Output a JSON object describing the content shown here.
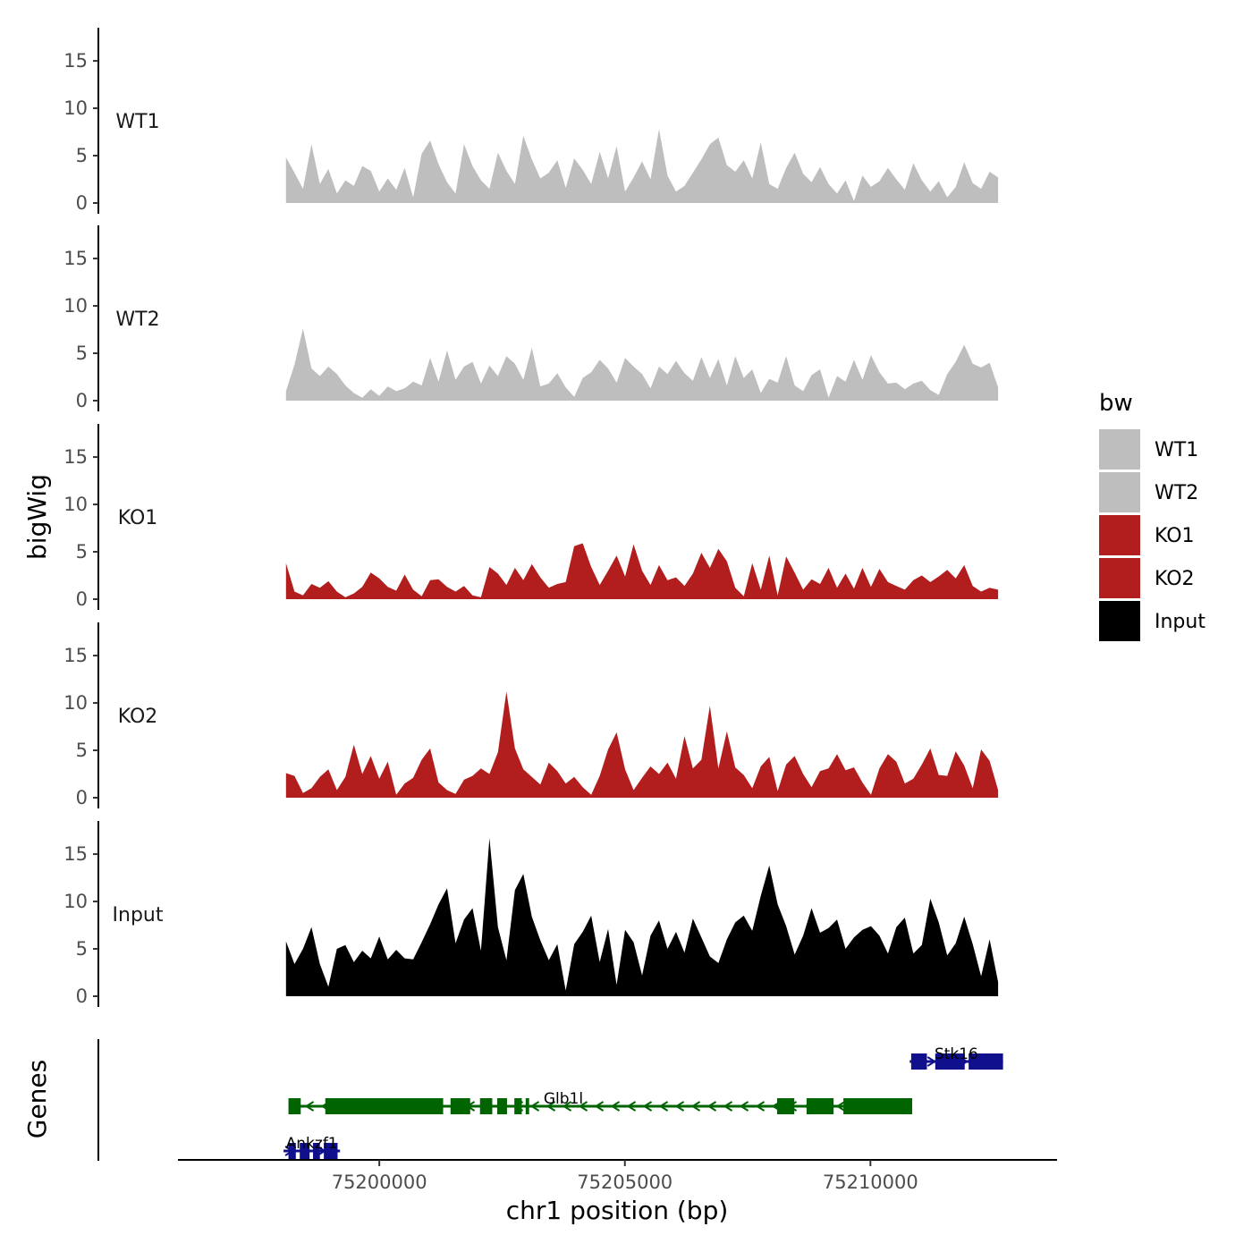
{
  "chart_data": {
    "type": "area",
    "y_axis_title": "bigWig",
    "x_axis_title": "chr1 position (bp)",
    "genes_axis_title": "Genes",
    "x_range": [
      75195900,
      75213800
    ],
    "x_ticks": [
      75200000,
      75205000,
      75210000
    ],
    "x_tick_labels": [
      "75200000",
      "75205000",
      "75210000"
    ],
    "y_range": [
      0,
      18.5
    ],
    "y_ticks": [
      0,
      5,
      10,
      15
    ],
    "y_tick_labels": [
      "0",
      "5",
      "10",
      "15"
    ],
    "legend": {
      "title": "bw",
      "entries": [
        {
          "label": "WT1",
          "color": "#bebebe"
        },
        {
          "label": "WT2",
          "color": "#bebebe"
        },
        {
          "label": "KO1",
          "color": "#b21e1e"
        },
        {
          "label": "KO2",
          "color": "#b21e1e"
        },
        {
          "label": "Input",
          "color": "#000000"
        }
      ]
    },
    "signal_x_range": [
      75198100,
      75212600
    ],
    "series": [
      {
        "name": "WT1",
        "color": "#bebebe",
        "values": [
          4.8,
          3.2,
          1.5,
          6.2,
          2.0,
          3.6,
          1.0,
          2.4,
          1.8,
          3.9,
          3.4,
          1.2,
          2.6,
          1.4,
          3.7,
          0.6,
          5.2,
          6.6,
          4.1,
          2.2,
          1.0,
          6.2,
          3.9,
          2.4,
          1.5,
          5.3,
          3.4,
          2.0,
          7.1,
          4.6,
          2.6,
          3.2,
          4.5,
          1.6,
          4.7,
          3.5,
          2.0,
          5.4,
          2.6,
          6.0,
          1.2,
          2.7,
          4.4,
          2.5,
          7.8,
          2.9,
          1.2,
          1.8,
          3.2,
          4.6,
          6.2,
          6.9,
          4.0,
          3.3,
          4.5,
          2.6,
          6.4,
          2.0,
          1.5,
          3.7,
          5.3,
          3.1,
          2.2,
          3.8,
          2.0,
          1.0,
          2.4,
          0.2,
          2.9,
          1.7,
          2.3,
          3.7,
          2.5,
          1.4,
          4.2,
          2.4,
          1.2,
          2.3,
          0.6,
          1.7,
          4.3,
          2.1,
          1.5,
          3.3,
          2.7
        ]
      },
      {
        "name": "WT2",
        "color": "#bebebe",
        "values": [
          1.0,
          3.8,
          7.6,
          3.4,
          2.6,
          3.6,
          2.8,
          1.6,
          0.8,
          0.3,
          1.2,
          0.5,
          1.5,
          1.0,
          1.3,
          2.0,
          1.6,
          4.5,
          2.0,
          5.3,
          2.2,
          3.6,
          4.1,
          1.8,
          3.7,
          2.6,
          4.7,
          3.9,
          2.2,
          5.6,
          1.5,
          1.8,
          2.9,
          1.4,
          0.4,
          2.4,
          3.0,
          4.3,
          3.4,
          1.9,
          4.5,
          3.6,
          2.8,
          1.3,
          3.6,
          2.8,
          4.2,
          2.9,
          2.1,
          4.6,
          2.4,
          4.4,
          1.6,
          4.7,
          2.4,
          3.3,
          0.8,
          2.3,
          1.9,
          4.7,
          1.6,
          1.0,
          2.7,
          3.3,
          0.3,
          2.6,
          2.0,
          4.3,
          2.2,
          4.8,
          3.0,
          1.8,
          1.9,
          1.2,
          1.8,
          2.1,
          1.1,
          0.6,
          2.8,
          4.1,
          5.9,
          3.9,
          3.5,
          4.0,
          1.4
        ]
      },
      {
        "name": "KO1",
        "color": "#b21e1e",
        "values": [
          3.8,
          0.8,
          0.4,
          1.6,
          1.2,
          1.9,
          0.8,
          0.2,
          0.6,
          1.3,
          2.8,
          2.2,
          1.3,
          0.9,
          2.6,
          1.0,
          0.3,
          2.0,
          2.1,
          1.3,
          0.8,
          1.4,
          0.4,
          0.2,
          3.4,
          2.7,
          1.5,
          3.3,
          2.0,
          3.7,
          2.3,
          1.2,
          1.6,
          1.8,
          5.6,
          5.9,
          3.4,
          1.5,
          3.0,
          4.6,
          2.4,
          5.8,
          3.0,
          1.5,
          3.6,
          2.0,
          2.3,
          1.4,
          2.7,
          4.9,
          3.3,
          5.3,
          4.0,
          1.2,
          0.3,
          3.8,
          1.0,
          4.6,
          0.4,
          4.5,
          2.8,
          1.0,
          2.1,
          1.6,
          3.3,
          1.2,
          2.7,
          1.1,
          3.3,
          1.3,
          3.2,
          1.8,
          1.4,
          1.0,
          2.0,
          2.5,
          1.8,
          2.4,
          3.1,
          2.2,
          3.6,
          1.4,
          0.8,
          1.2,
          1.0
        ]
      },
      {
        "name": "KO2",
        "color": "#b21e1e",
        "values": [
          2.6,
          2.3,
          0.5,
          1.0,
          2.2,
          3.0,
          0.8,
          2.2,
          5.6,
          2.5,
          4.4,
          2.0,
          3.8,
          0.3,
          1.5,
          2.1,
          4.0,
          5.2,
          1.6,
          0.8,
          0.4,
          1.9,
          2.3,
          3.1,
          2.5,
          4.8,
          11.2,
          5.2,
          3.0,
          2.2,
          1.4,
          3.7,
          2.8,
          1.5,
          2.2,
          1.1,
          0.3,
          2.3,
          5.1,
          6.9,
          3.0,
          0.8,
          2.1,
          3.3,
          2.5,
          3.7,
          2.0,
          6.5,
          3.1,
          4.0,
          9.7,
          3.1,
          7.0,
          3.2,
          2.4,
          1.0,
          3.3,
          4.3,
          0.7,
          3.5,
          4.4,
          2.5,
          1.1,
          2.8,
          3.1,
          4.6,
          2.9,
          3.2,
          1.6,
          0.3,
          3.1,
          4.6,
          3.8,
          1.5,
          2.0,
          3.5,
          5.2,
          2.4,
          2.3,
          4.9,
          3.4,
          1.0,
          5.1,
          3.9,
          0.8
        ]
      },
      {
        "name": "Input",
        "color": "#000000",
        "values": [
          5.8,
          3.4,
          5.0,
          7.3,
          3.4,
          1.0,
          5.0,
          5.4,
          3.6,
          4.8,
          4.0,
          6.3,
          3.9,
          4.9,
          4.0,
          3.9,
          5.7,
          7.6,
          9.7,
          11.4,
          5.6,
          8.1,
          9.3,
          4.8,
          16.7,
          7.3,
          3.8,
          11.2,
          12.9,
          8.4,
          5.9,
          3.8,
          5.5,
          0.6,
          5.5,
          6.8,
          8.5,
          3.6,
          7.1,
          1.2,
          7.0,
          5.7,
          2.2,
          6.4,
          8.0,
          5.0,
          6.8,
          4.6,
          8.2,
          6.2,
          4.2,
          3.5,
          6.0,
          7.8,
          8.5,
          6.9,
          10.6,
          13.8,
          9.7,
          7.4,
          4.4,
          6.4,
          9.3,
          6.7,
          7.2,
          8.1,
          5.0,
          6.2,
          7.0,
          7.4,
          6.4,
          4.5,
          7.3,
          8.3,
          4.5,
          5.4,
          10.3,
          7.8,
          4.3,
          5.6,
          8.4,
          5.5,
          2.1,
          6.0,
          1.5
        ]
      }
    ],
    "genes": [
      {
        "name": "Stk16",
        "start": 75210800,
        "end": 75212700,
        "strand": "+",
        "color": "#10108c",
        "exons": [
          [
            75210830,
            75211150
          ],
          [
            75211320,
            75211920
          ],
          [
            75212000,
            75212700
          ]
        ]
      },
      {
        "name": "Glb1l",
        "start": 75198150,
        "end": 75210850,
        "strand": "-",
        "color": "#006400",
        "exons": [
          [
            75198150,
            75198400
          ],
          [
            75198900,
            75201300
          ],
          [
            75201450,
            75201850
          ],
          [
            75202050,
            75202300
          ],
          [
            75202400,
            75202600
          ],
          [
            75202750,
            75202900
          ],
          [
            75202980,
            75203050
          ],
          [
            75208100,
            75208450
          ],
          [
            75208700,
            75209250
          ],
          [
            75209450,
            75210850
          ]
        ]
      },
      {
        "name": "Ankzf1",
        "start": 75198050,
        "end": 75199200,
        "strand": "+",
        "color": "#10108c",
        "exons": [
          [
            75198150,
            75198300
          ],
          [
            75198380,
            75198580
          ],
          [
            75198650,
            75198790
          ],
          [
            75198870,
            75199150
          ]
        ]
      }
    ]
  }
}
